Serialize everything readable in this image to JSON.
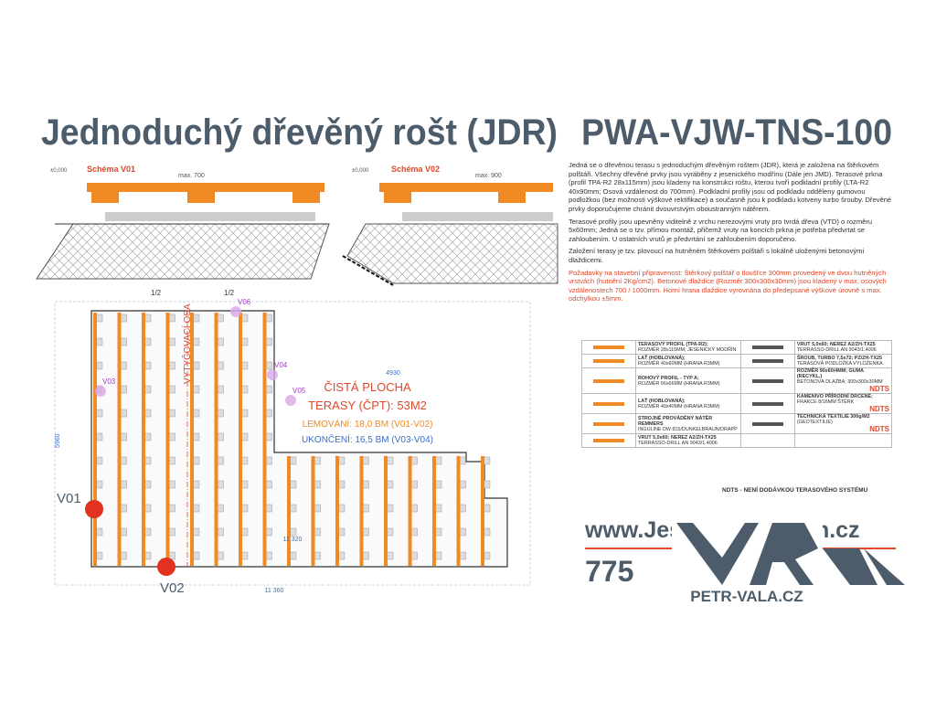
{
  "header": {
    "title": "Jednoduchý dřevěný rošt (JDR)",
    "code": "PWA-VJW-TNS-100"
  },
  "schemes": [
    {
      "label": "Schéma V01",
      "span": "max. 700",
      "level": "±0,000"
    },
    {
      "label": "Schéma V02",
      "span": "max. 900",
      "level": "±0,000"
    }
  ],
  "description": [
    "Jedná se o dřevěnou terasu s jednoduchým dřevěným roštem (JDR), která je založena na štěrkovém polštáři. Všechny dřevěné prvky jsou vyráběny z jesenického modřínu (Dále jen JMD). Terasové prkna (profil TPA-R2 28x115mm) jsou kladeny na konstrukci roštu, kterou tvoří podkladní profily (LTA-R2 40x90mm; Osová vzdálenost do 700mm). Podkladní profily jsou od podkladu odděleny gumovou podložkou (bez možnosti výškové rektifikace) a současně jsou k podkladu kotveny turbo šrouby. Dřevěné prvky doporučujeme chránit dvouvrstvým oboustranným nátěrem.",
    "Terasové profily jsou upevněny viditelně z vrchu nerezovými vruty pro tvrdá dřeva (VTD) o rozměru 5x60mm; Jedná se o tzv. přímou montáž, přičemž vruty na koncích prkna je potřeba předvrtat se zahloubením. U ostatních vrutů je předvrtání se zahloubením doporučeno.",
    "Založení terasy je tzv. plovoucí na hutněném štěrkovém polštáři s lokálně uloženými betonovými dlaždicemi."
  ],
  "requirements": "Požadavky na stavební připravenost: Štěrkový polštář o tloušťce 300mm provedený ve dvou hutněných vrstvách (hutnění 2Kg/cm2). Betonové dlaždice (Rozměr 300x300x30mm) jsou kladeny v max. osových vzdálenostech 700 / 1000mm. Horní hrana dlaždice vyrovnána do předepsané výškové úrovně s max. odchylkou ±5mm.",
  "plan": {
    "axis": "VYTYČOVACÍ OSA",
    "area_title": "ČISTÁ PLOCHA",
    "area_value": "TERASY (ČPT): 53M2",
    "edging": "LEMOVÁNÍ: 18,0 BM (V01-V02)",
    "finishing": "UKONČENÍ: 16,5 BM (V03-V04)",
    "v01": "V01",
    "v02": "V02",
    "v03": "V03",
    "v04": "V04",
    "v05": "V05",
    "v06": "V06",
    "half_a": "1/2",
    "half_b": "1/2",
    "total_width": "11 360",
    "total_height": "5960",
    "inner": "11 320",
    "span": "4930"
  },
  "legend": {
    "left": [
      {
        "title": "TERASOVÝ PROFIL (TPA-R2);",
        "detail": "ROZMĚR 28x115MM; JESENICKÝ MODŘÍN"
      },
      {
        "title": "LAŤ (HOBLOVANÁ);",
        "detail": "ROZMĚR 40x60MM (HRANA R3MM)"
      },
      {
        "title": "ROHOVÝ PROFIL - TYP A;",
        "detail": "ROZMĚR 66x66MM (HRANA R3MM)"
      },
      {
        "title": "LAŤ (HOBLOVANÁ);",
        "detail": "ROZMĚR 40x40MM (HRANA R3MM)"
      },
      {
        "title": "STROJNĚ PROVÁDĚNÝ NÁTĚR REMMERS",
        "detail": "INGULINE DW 815/DUNKELBRAUN/DRAPP"
      },
      {
        "title": "VRUT 5,0x60; NEREZ A2/ZH-TX25",
        "detail": "TERRASSO-DRILL AN 9043/1.4006"
      }
    ],
    "right": [
      {
        "title": "VRUT 5,0x60; NEREZ A2/ZH-TX25",
        "detail": "TERRASSO-DRILL AN 9043/1.4006"
      },
      {
        "title": "ŠROUB, TURBO 7,5x72; PZ/ZH-TX25",
        "detail": "TERASOVÁ PODLOŽKA VYLOŽENKA"
      },
      {
        "title": "ROZMĚR 90x60/4MM; GUMA (RECYKL.)",
        "detail": "BETONOVÁ DLAŽBA; 300x300x30MM",
        "note": "NDTS"
      },
      {
        "title": "KAMENIVO PŘÍRODNÍ DRCENÉ;",
        "detail": "FRAKCE 8/16MM ŠTĚRK",
        "note": "NDTS"
      },
      {
        "title": "TECHNICKÁ TEXTILIE 300g/M2",
        "detail": "(GEOTEXTILIE)",
        "note": "NDTS"
      }
    ],
    "footer": "NDTS - NENÍ DODÁVKOU TERASOVÉHO SYSTÉMU"
  },
  "contact": {
    "web": "www.JesenickyModrin.cz",
    "phone": "775",
    "logo": "PETR-VALA.CZ"
  }
}
